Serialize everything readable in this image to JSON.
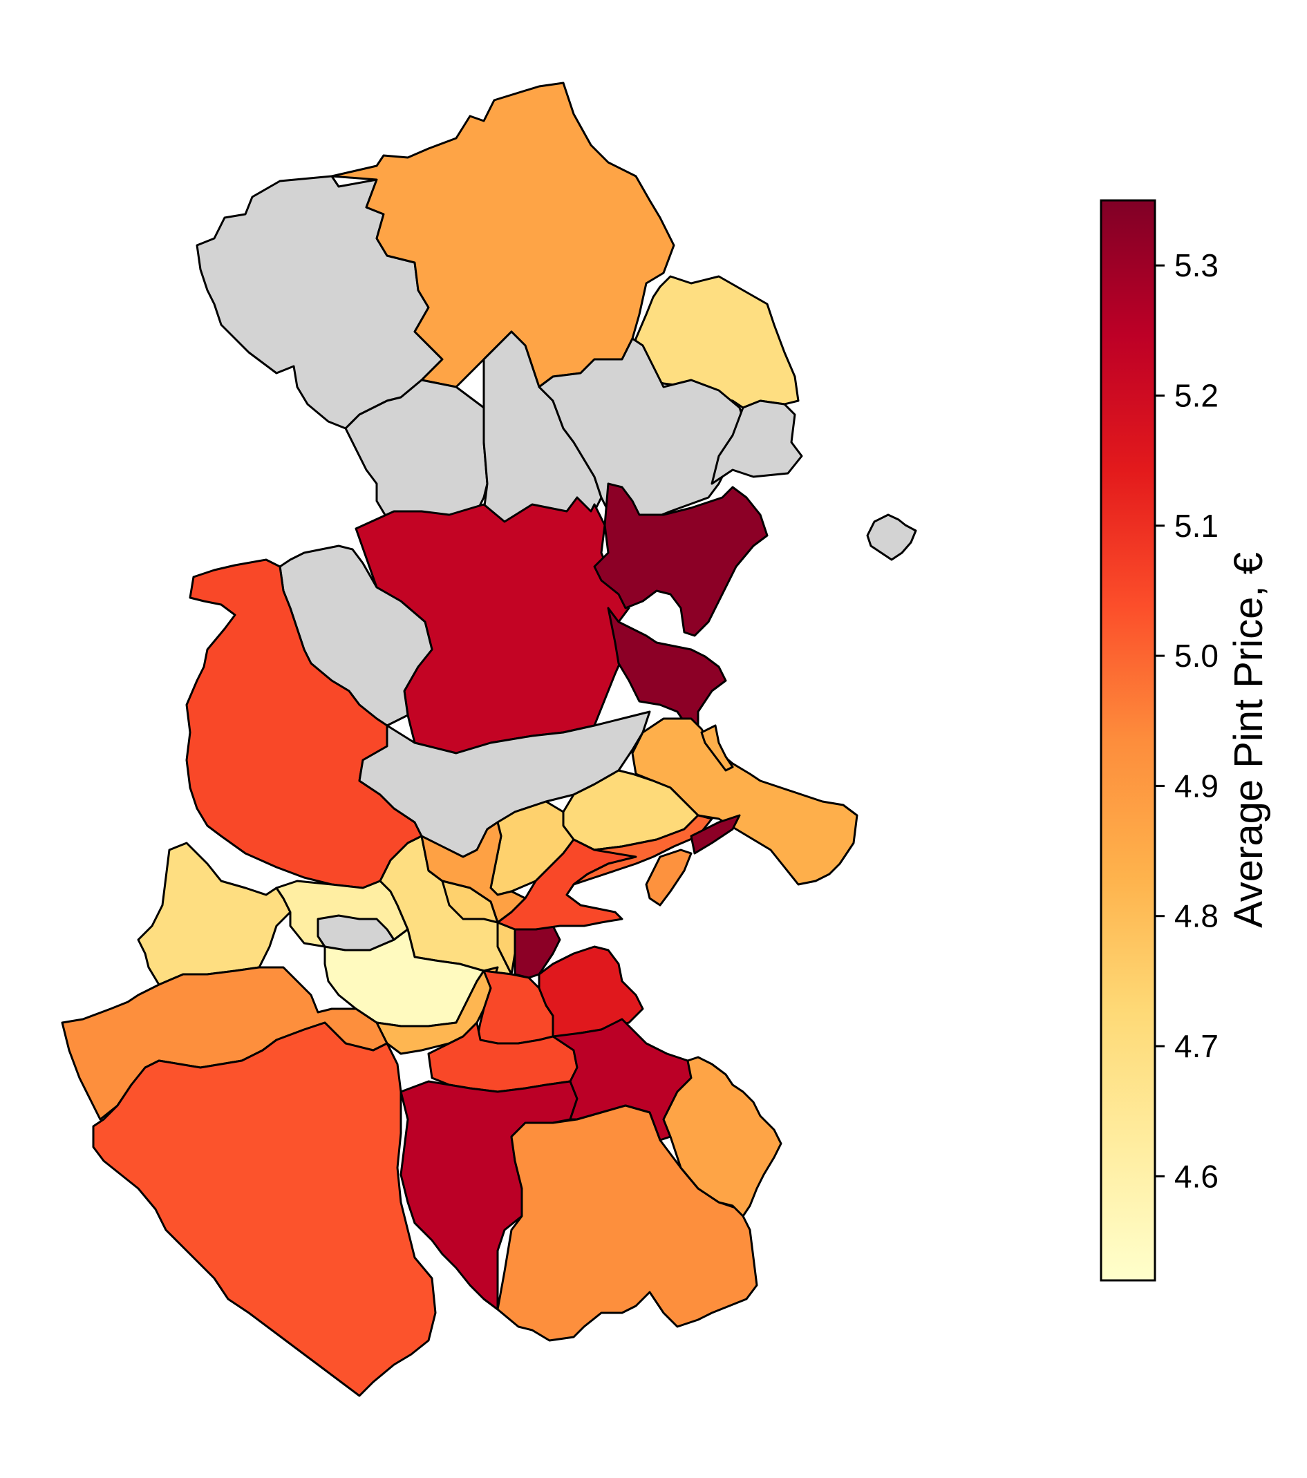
{
  "map": {
    "no_data_color": "#d3d3d3",
    "border_color": "#000000",
    "colormap": "YlOrRd",
    "regions": [
      {
        "id": "north-swords",
        "value": 4.87
      },
      {
        "id": "north-west-no-data",
        "value": null
      },
      {
        "id": "north-east-coast",
        "value": 4.7
      },
      {
        "id": "central-north-a",
        "value": null
      },
      {
        "id": "central-north-b",
        "value": null
      },
      {
        "id": "central-north-c",
        "value": null
      },
      {
        "id": "north-east-small",
        "value": null
      },
      {
        "id": "lambay-island",
        "value": null
      },
      {
        "id": "central-large",
        "value": 5.23
      },
      {
        "id": "portmarnock-malahide",
        "value": 5.33
      },
      {
        "id": "sutton-area",
        "value": 5.33
      },
      {
        "id": "west-no-data-strip",
        "value": null
      },
      {
        "id": "west-large",
        "value": 5.05
      },
      {
        "id": "central-no-data",
        "value": null
      },
      {
        "id": "howth",
        "value": 4.84
      },
      {
        "id": "raheny",
        "value": 4.72
      },
      {
        "id": "coolock",
        "value": 4.75
      },
      {
        "id": "south-west-small",
        "value": 4.7
      },
      {
        "id": "clondalkin-strip",
        "value": 4.62
      },
      {
        "id": "lucan",
        "value": 4.7
      },
      {
        "id": "finglas",
        "value": 4.88
      },
      {
        "id": "cabra",
        "value": 4.75
      },
      {
        "id": "city-centre",
        "value": 5.33
      },
      {
        "id": "north-inner-city",
        "value": 5.05
      },
      {
        "id": "clontarf",
        "value": 5.0
      },
      {
        "id": "bull-island",
        "value": 4.92
      },
      {
        "id": "crumlin",
        "value": 4.55
      },
      {
        "id": "walkinstown",
        "value": 4.82
      },
      {
        "id": "ballyfermot-no-data",
        "value": null
      },
      {
        "id": "rathmines",
        "value": 5.05
      },
      {
        "id": "ballsbridge",
        "value": 5.15
      },
      {
        "id": "saggart",
        "value": 4.93
      },
      {
        "id": "tallaght",
        "value": 5.03
      },
      {
        "id": "dundrum",
        "value": 5.05
      },
      {
        "id": "stillorgan",
        "value": 5.25
      },
      {
        "id": "rathfarnham",
        "value": 5.25
      },
      {
        "id": "ballyboden",
        "value": 4.93
      },
      {
        "id": "dun-laoghaire",
        "value": 4.87
      }
    ]
  },
  "colorbar": {
    "label": "Average Pint Price, €",
    "vmin": 4.52,
    "vmax": 5.35,
    "ticks": [
      "4.6",
      "4.7",
      "4.8",
      "4.9",
      "5.0",
      "5.1",
      "5.2",
      "5.3"
    ],
    "stops": [
      {
        "offset": 0.0,
        "color": "#ffffcc"
      },
      {
        "offset": 0.125,
        "color": "#ffeda0"
      },
      {
        "offset": 0.25,
        "color": "#fed976"
      },
      {
        "offset": 0.375,
        "color": "#feb24c"
      },
      {
        "offset": 0.5,
        "color": "#fd8d3c"
      },
      {
        "offset": 0.625,
        "color": "#fc4e2a"
      },
      {
        "offset": 0.75,
        "color": "#e31a1c"
      },
      {
        "offset": 0.875,
        "color": "#bd0026"
      },
      {
        "offset": 1.0,
        "color": "#800026"
      }
    ]
  }
}
